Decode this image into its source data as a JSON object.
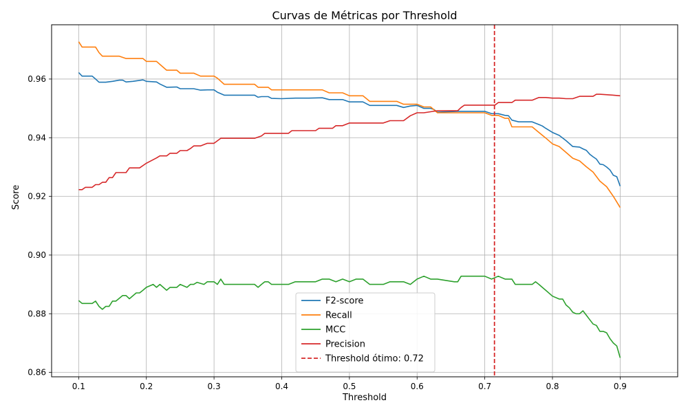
{
  "chart_data": {
    "type": "line",
    "title": "Curvas de Métricas por Threshold",
    "xlabel": "Threshold",
    "ylabel": "Score",
    "xlim": [
      0.06,
      0.985
    ],
    "ylim": [
      0.8585,
      0.9785
    ],
    "xticks": [
      0.1,
      0.2,
      0.3,
      0.4,
      0.5,
      0.6,
      0.7,
      0.8,
      0.9
    ],
    "xtick_labels": [
      "0.1",
      "0.2",
      "0.3",
      "0.4",
      "0.5",
      "0.6",
      "0.7",
      "0.8",
      "0.9"
    ],
    "yticks": [
      0.86,
      0.88,
      0.9,
      0.92,
      0.94,
      0.96
    ],
    "ytick_labels": [
      "0.86",
      "0.88",
      "0.90",
      "0.92",
      "0.94",
      "0.96"
    ],
    "grid": true,
    "legend_position": "bottom-center",
    "series": [
      {
        "name": "F2-score",
        "color": "#1f77b4",
        "x": [
          0.1,
          0.105,
          0.12,
          0.125,
          0.13,
          0.135,
          0.14,
          0.15,
          0.16,
          0.165,
          0.17,
          0.18,
          0.195,
          0.2,
          0.215,
          0.22,
          0.23,
          0.245,
          0.25,
          0.26,
          0.27,
          0.28,
          0.29,
          0.3,
          0.305,
          0.315,
          0.33,
          0.35,
          0.36,
          0.365,
          0.37,
          0.38,
          0.385,
          0.4,
          0.42,
          0.44,
          0.46,
          0.47,
          0.48,
          0.49,
          0.5,
          0.51,
          0.52,
          0.53,
          0.55,
          0.57,
          0.58,
          0.59,
          0.6,
          0.61,
          0.62,
          0.625,
          0.63,
          0.66,
          0.7,
          0.71,
          0.72,
          0.73,
          0.735,
          0.74,
          0.75,
          0.77,
          0.78,
          0.785,
          0.79,
          0.8,
          0.81,
          0.82,
          0.83,
          0.84,
          0.845,
          0.85,
          0.855,
          0.86,
          0.865,
          0.87,
          0.875,
          0.88,
          0.885,
          0.89,
          0.895,
          0.9
        ],
        "y": [
          0.9622,
          0.961,
          0.961,
          0.96,
          0.9589,
          0.9589,
          0.9589,
          0.9592,
          0.9596,
          0.9596,
          0.959,
          0.9592,
          0.9597,
          0.9592,
          0.959,
          0.9583,
          0.9572,
          0.9573,
          0.9567,
          0.9567,
          0.9567,
          0.9562,
          0.9563,
          0.9563,
          0.9555,
          0.9545,
          0.9545,
          0.9545,
          0.9545,
          0.9538,
          0.954,
          0.954,
          0.9534,
          0.9533,
          0.9535,
          0.9535,
          0.9536,
          0.953,
          0.953,
          0.953,
          0.9522,
          0.9522,
          0.9522,
          0.951,
          0.951,
          0.951,
          0.9503,
          0.9508,
          0.951,
          0.95,
          0.95,
          0.9496,
          0.9487,
          0.949,
          0.949,
          0.9482,
          0.9482,
          0.9476,
          0.9475,
          0.946,
          0.9454,
          0.9454,
          0.9445,
          0.944,
          0.9432,
          0.9418,
          0.9408,
          0.939,
          0.937,
          0.9368,
          0.9362,
          0.9357,
          0.9344,
          0.9335,
          0.9327,
          0.931,
          0.9308,
          0.93,
          0.929,
          0.9272,
          0.9267,
          0.9235
        ]
      },
      {
        "name": "Recall",
        "color": "#ff7f0e",
        "x": [
          0.1,
          0.105,
          0.125,
          0.13,
          0.135,
          0.16,
          0.17,
          0.185,
          0.195,
          0.2,
          0.215,
          0.22,
          0.23,
          0.245,
          0.25,
          0.26,
          0.27,
          0.28,
          0.3,
          0.305,
          0.315,
          0.35,
          0.36,
          0.365,
          0.38,
          0.385,
          0.41,
          0.46,
          0.47,
          0.48,
          0.49,
          0.5,
          0.51,
          0.52,
          0.53,
          0.55,
          0.57,
          0.58,
          0.59,
          0.6,
          0.61,
          0.62,
          0.63,
          0.66,
          0.7,
          0.71,
          0.72,
          0.73,
          0.735,
          0.74,
          0.75,
          0.77,
          0.78,
          0.79,
          0.8,
          0.81,
          0.82,
          0.83,
          0.84,
          0.85,
          0.86,
          0.87,
          0.88,
          0.89,
          0.9
        ],
        "y": [
          0.9727,
          0.9709,
          0.9709,
          0.969,
          0.9678,
          0.9678,
          0.967,
          0.967,
          0.967,
          0.966,
          0.966,
          0.965,
          0.963,
          0.963,
          0.962,
          0.962,
          0.962,
          0.961,
          0.961,
          0.9603,
          0.9582,
          0.9582,
          0.9582,
          0.9572,
          0.9572,
          0.9563,
          0.9563,
          0.9563,
          0.9553,
          0.9553,
          0.9553,
          0.9543,
          0.9543,
          0.9543,
          0.9524,
          0.9524,
          0.9524,
          0.9514,
          0.9514,
          0.9514,
          0.9505,
          0.9505,
          0.9485,
          0.9485,
          0.9485,
          0.9476,
          0.9476,
          0.9466,
          0.9466,
          0.9437,
          0.9437,
          0.9437,
          0.9418,
          0.9399,
          0.9379,
          0.937,
          0.935,
          0.933,
          0.9321,
          0.9301,
          0.9283,
          0.9252,
          0.9233,
          0.92,
          0.9162
        ]
      },
      {
        "name": "MCC",
        "color": "#2ca02c",
        "x": [
          0.1,
          0.105,
          0.12,
          0.125,
          0.13,
          0.135,
          0.14,
          0.145,
          0.15,
          0.155,
          0.165,
          0.17,
          0.175,
          0.185,
          0.19,
          0.195,
          0.2,
          0.21,
          0.215,
          0.22,
          0.225,
          0.23,
          0.235,
          0.24,
          0.245,
          0.25,
          0.26,
          0.265,
          0.27,
          0.275,
          0.285,
          0.29,
          0.3,
          0.305,
          0.31,
          0.315,
          0.32,
          0.36,
          0.365,
          0.37,
          0.375,
          0.38,
          0.385,
          0.39,
          0.41,
          0.42,
          0.45,
          0.46,
          0.47,
          0.48,
          0.49,
          0.5,
          0.51,
          0.52,
          0.53,
          0.55,
          0.56,
          0.58,
          0.59,
          0.6,
          0.61,
          0.62,
          0.63,
          0.655,
          0.66,
          0.665,
          0.7,
          0.71,
          0.72,
          0.73,
          0.74,
          0.745,
          0.77,
          0.775,
          0.78,
          0.785,
          0.79,
          0.8,
          0.81,
          0.815,
          0.82,
          0.825,
          0.83,
          0.835,
          0.84,
          0.845,
          0.85,
          0.855,
          0.86,
          0.865,
          0.87,
          0.875,
          0.88,
          0.885,
          0.89,
          0.895,
          0.9
        ],
        "y": [
          0.8845,
          0.8835,
          0.8835,
          0.8843,
          0.8825,
          0.8815,
          0.8825,
          0.8825,
          0.8843,
          0.8843,
          0.8862,
          0.8862,
          0.8851,
          0.8871,
          0.8871,
          0.888,
          0.889,
          0.89,
          0.889,
          0.89,
          0.889,
          0.888,
          0.889,
          0.889,
          0.889,
          0.89,
          0.889,
          0.89,
          0.89,
          0.8907,
          0.89,
          0.8909,
          0.8909,
          0.89,
          0.8918,
          0.89,
          0.89,
          0.89,
          0.889,
          0.89,
          0.8909,
          0.8909,
          0.89,
          0.89,
          0.89,
          0.8909,
          0.8909,
          0.8918,
          0.8918,
          0.8909,
          0.8918,
          0.8909,
          0.8918,
          0.8918,
          0.89,
          0.89,
          0.8909,
          0.8909,
          0.89,
          0.8918,
          0.8928,
          0.8918,
          0.8918,
          0.8909,
          0.8909,
          0.8928,
          0.8928,
          0.8918,
          0.8928,
          0.8918,
          0.8918,
          0.89,
          0.89,
          0.8909,
          0.89,
          0.889,
          0.888,
          0.886,
          0.885,
          0.885,
          0.883,
          0.882,
          0.8805,
          0.88,
          0.88,
          0.881,
          0.8795,
          0.878,
          0.8765,
          0.876,
          0.874,
          0.874,
          0.8735,
          0.8715,
          0.87,
          0.869,
          0.865
        ]
      },
      {
        "name": "Precision",
        "color": "#d62728",
        "x": [
          0.1,
          0.105,
          0.11,
          0.12,
          0.125,
          0.13,
          0.135,
          0.14,
          0.145,
          0.15,
          0.155,
          0.16,
          0.165,
          0.17,
          0.175,
          0.19,
          0.2,
          0.215,
          0.22,
          0.23,
          0.235,
          0.24,
          0.245,
          0.25,
          0.26,
          0.265,
          0.27,
          0.28,
          0.29,
          0.3,
          0.31,
          0.315,
          0.32,
          0.36,
          0.37,
          0.375,
          0.38,
          0.385,
          0.41,
          0.415,
          0.42,
          0.45,
          0.455,
          0.46,
          0.47,
          0.475,
          0.48,
          0.49,
          0.5,
          0.52,
          0.53,
          0.55,
          0.56,
          0.58,
          0.59,
          0.6,
          0.61,
          0.63,
          0.66,
          0.665,
          0.67,
          0.7,
          0.71,
          0.715,
          0.72,
          0.73,
          0.74,
          0.745,
          0.77,
          0.78,
          0.79,
          0.8,
          0.81,
          0.82,
          0.83,
          0.84,
          0.86,
          0.865,
          0.87,
          0.89,
          0.9
        ],
        "y": [
          0.9223,
          0.9223,
          0.9231,
          0.9231,
          0.924,
          0.924,
          0.9248,
          0.9248,
          0.9264,
          0.9264,
          0.9281,
          0.9281,
          0.9281,
          0.9281,
          0.9297,
          0.9297,
          0.9313,
          0.9331,
          0.9338,
          0.9338,
          0.9347,
          0.9347,
          0.9347,
          0.9356,
          0.9356,
          0.9363,
          0.9372,
          0.9372,
          0.9381,
          0.9381,
          0.9398,
          0.9398,
          0.9398,
          0.9398,
          0.9406,
          0.9415,
          0.9415,
          0.9415,
          0.9415,
          0.9424,
          0.9424,
          0.9424,
          0.9432,
          0.9432,
          0.9432,
          0.9432,
          0.9441,
          0.9441,
          0.945,
          0.945,
          0.945,
          0.945,
          0.9458,
          0.9458,
          0.9475,
          0.9485,
          0.9485,
          0.9492,
          0.9492,
          0.9503,
          0.9511,
          0.9511,
          0.9511,
          0.9511,
          0.952,
          0.952,
          0.952,
          0.9528,
          0.9528,
          0.9537,
          0.9537,
          0.9535,
          0.9535,
          0.9533,
          0.9533,
          0.9541,
          0.9541,
          0.9548,
          0.9548,
          0.9545,
          0.9543
        ]
      }
    ],
    "annotations": [
      {
        "type": "vline",
        "name": "Threshold ótimo: 0.72",
        "x": 0.7143,
        "color": "#d62728",
        "style": "dashed"
      }
    ]
  }
}
